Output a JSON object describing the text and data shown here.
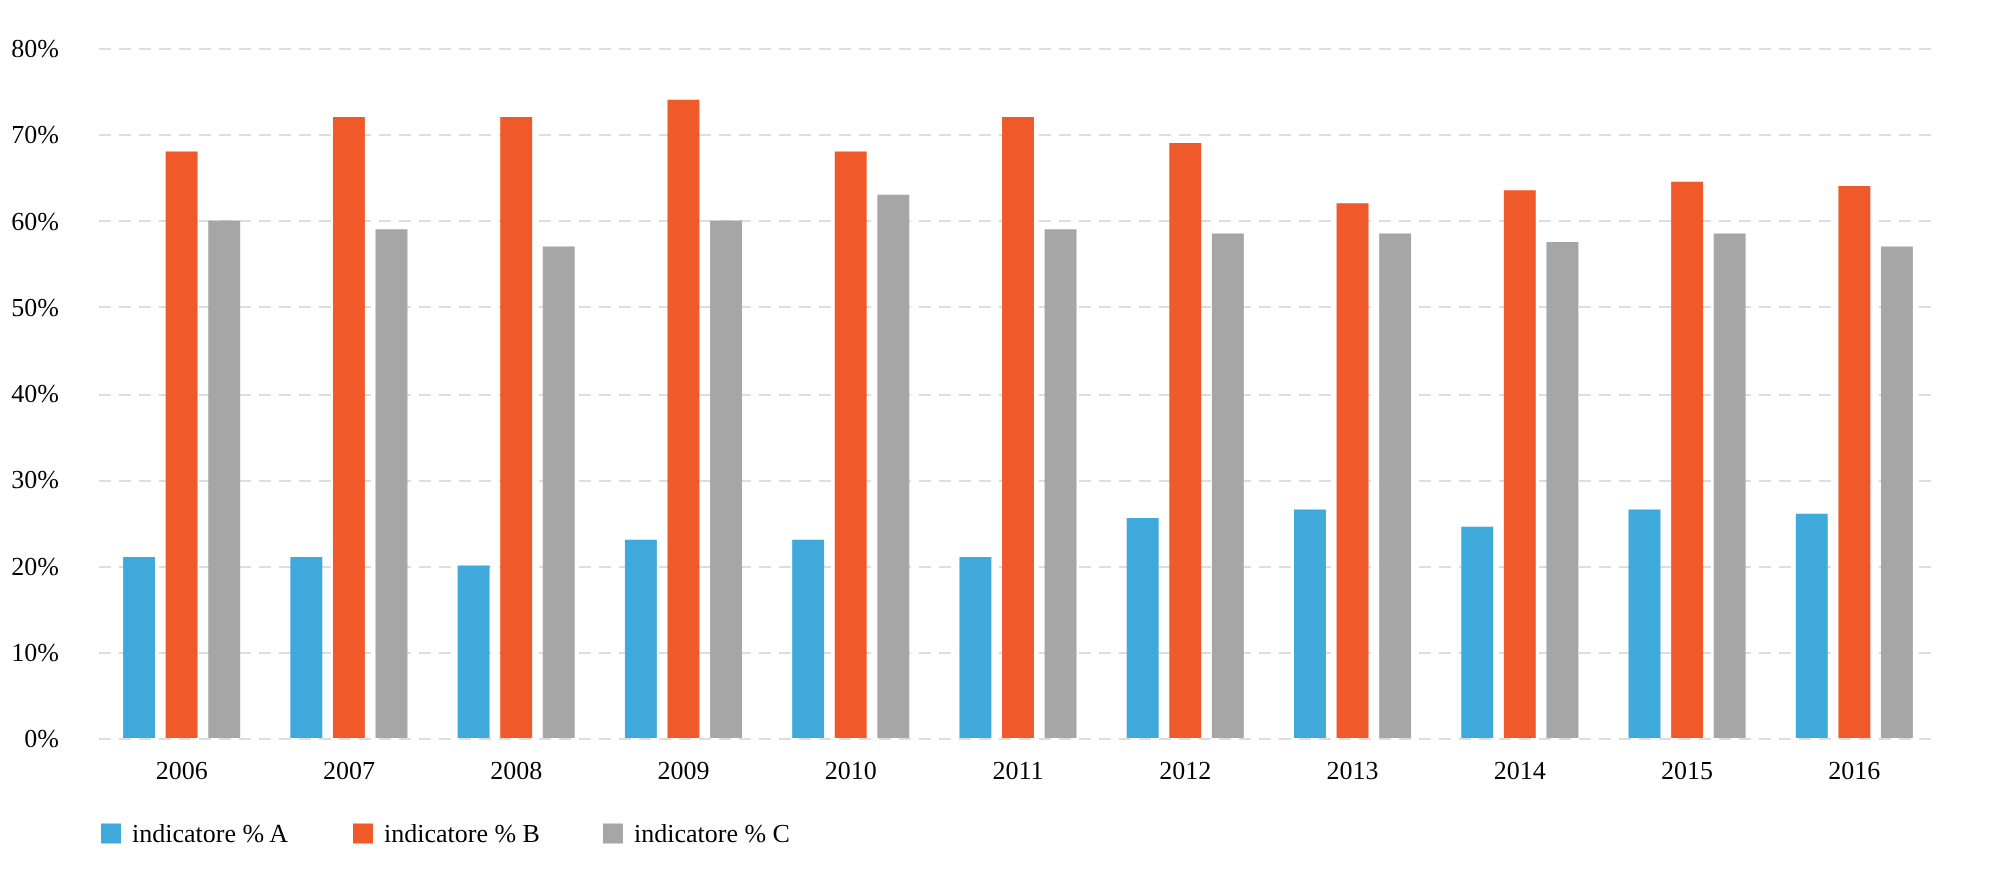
{
  "chart_data": {
    "type": "bar",
    "categories": [
      "2006",
      "2007",
      "2008",
      "2009",
      "2010",
      "2011",
      "2012",
      "2013",
      "2014",
      "2015",
      "2016"
    ],
    "series": [
      {
        "name": "indicatore % A",
        "color": "#3fa9dc",
        "values": [
          21,
          21,
          20,
          23,
          23,
          21,
          25.5,
          26.5,
          24.5,
          26.5,
          26
        ]
      },
      {
        "name": "indicatore % B",
        "color": "#f05a2a",
        "values": [
          68,
          72,
          72,
          74,
          68,
          72,
          69,
          62,
          63.5,
          64.5,
          64
        ]
      },
      {
        "name": "indicatore % C",
        "color": "#a6a6a6",
        "values": [
          60,
          59,
          57,
          60,
          63,
          59,
          58.5,
          58.5,
          57.5,
          58.5,
          57
        ]
      }
    ],
    "ylim": [
      0,
      80
    ],
    "yticks": [
      {
        "value": 0,
        "label": "0%"
      },
      {
        "value": 10,
        "label": "10%"
      },
      {
        "value": 20,
        "label": "20%"
      },
      {
        "value": 30,
        "label": "30%"
      },
      {
        "value": 40,
        "label": "40%"
      },
      {
        "value": 50,
        "label": "50%"
      },
      {
        "value": 60,
        "label": "60%"
      },
      {
        "value": 70,
        "label": "70%"
      },
      {
        "value": 80,
        "label": "80%"
      }
    ],
    "grid": "y",
    "legend": "bottom"
  }
}
